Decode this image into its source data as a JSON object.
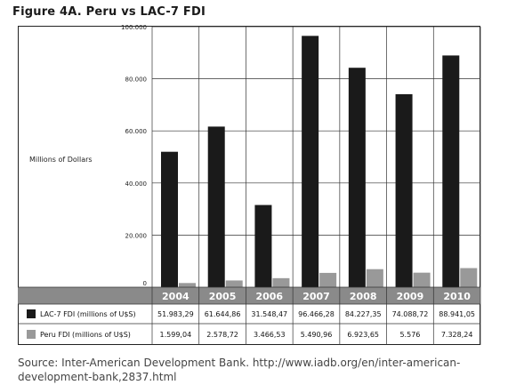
{
  "title": "Figure 4A. Peru vs LAC-7 FDI",
  "source": "Source: Inter-American Development Bank. http://www.iadb.org/en/inter-american-development-bank,2837.html",
  "colors": {
    "lac7": "#1a1a1a",
    "peru": "#999999",
    "header": "#8a8a8a"
  },
  "chart_data": {
    "type": "bar",
    "ylabel": "Millions of Dollars",
    "ylim": [
      0,
      100000
    ],
    "yticks": [
      "0",
      "20.000",
      "40.000",
      "60.000",
      "80.000",
      "100.000"
    ],
    "categories": [
      "2004",
      "2005",
      "2006",
      "2007",
      "2008",
      "2009",
      "2010"
    ],
    "grid": true,
    "legend": "table-left",
    "series": [
      {
        "name": "LAC-7 FDI (millions of U$S)",
        "values": [
          51983.29,
          61644.86,
          31548.47,
          96466.28,
          84227.35,
          74088.72,
          88941.05
        ],
        "labels": [
          "51.983,29",
          "61.644,86",
          "31.548,47",
          "96.466,28",
          "84.227,35",
          "74.088,72",
          "88.941,05"
        ]
      },
      {
        "name": "Peru FDI (millions of U$S)",
        "values": [
          1599.04,
          2578.72,
          3466.53,
          5490.96,
          6923.65,
          5576,
          7328.24
        ],
        "labels": [
          "1.599,04",
          "2.578,72",
          "3.466,53",
          "5.490,96",
          "6.923,65",
          "5.576",
          "7.328,24"
        ]
      }
    ]
  }
}
